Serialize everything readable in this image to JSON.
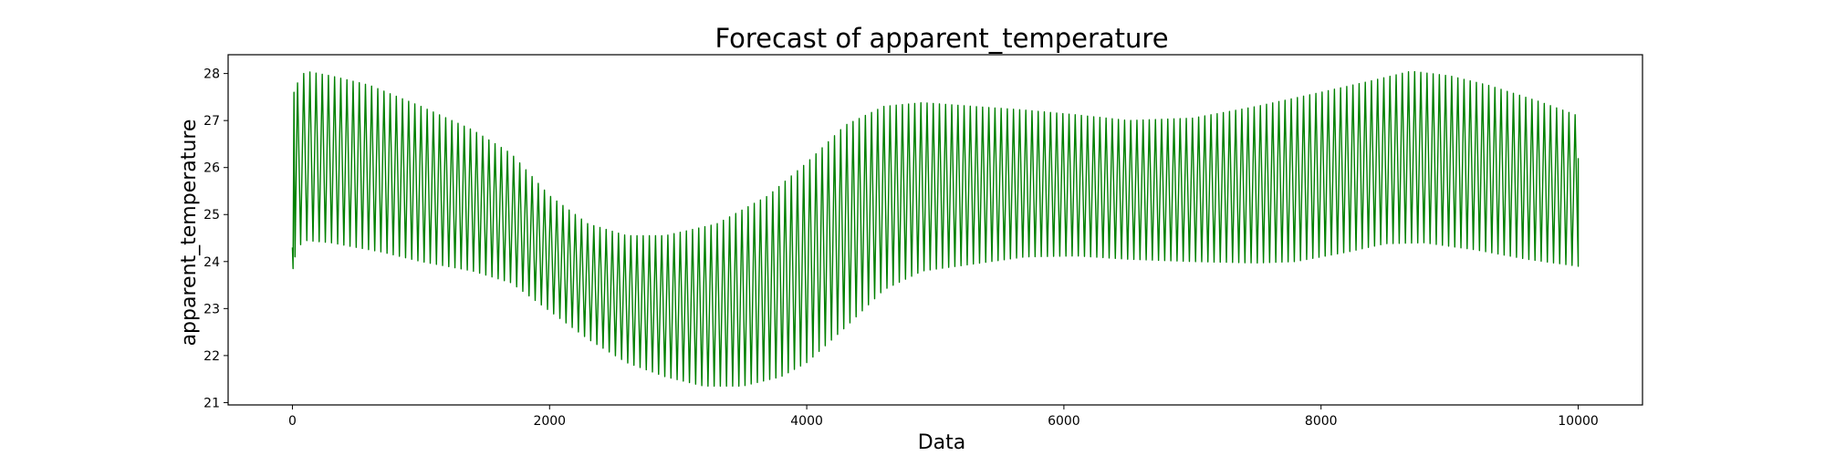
{
  "chart_data": {
    "type": "line",
    "title": "Forecast of apparent_temperature",
    "xlabel": "Data",
    "ylabel": "apparent_temperature",
    "xlim": [
      -500,
      10500
    ],
    "ylim": [
      20.95,
      28.4
    ],
    "x_ticks": [
      0,
      2000,
      4000,
      6000,
      8000,
      10000
    ],
    "y_ticks": [
      21,
      22,
      23,
      24,
      25,
      26,
      27,
      28
    ],
    "grid": false,
    "legend": "none",
    "line_color": "#008000",
    "series": [
      {
        "oscillation_period": 48,
        "initial": [
          {
            "x": 0,
            "value": 24.3
          },
          {
            "x": 5,
            "value": 23.85
          },
          {
            "x": 12,
            "value": 27.6
          },
          {
            "x": 20,
            "value": 24.1
          }
        ],
        "upper_envelope": [
          [
            40,
            27.8
          ],
          [
            100,
            28.05
          ],
          [
            300,
            27.95
          ],
          [
            600,
            27.75
          ],
          [
            1000,
            27.3
          ],
          [
            1400,
            26.8
          ],
          [
            1700,
            26.3
          ],
          [
            2000,
            25.4
          ],
          [
            2300,
            24.8
          ],
          [
            2600,
            24.55
          ],
          [
            2900,
            24.55
          ],
          [
            3300,
            24.8
          ],
          [
            3700,
            25.4
          ],
          [
            4000,
            26.1
          ],
          [
            4300,
            26.9
          ],
          [
            4600,
            27.3
          ],
          [
            4900,
            27.38
          ],
          [
            5300,
            27.3
          ],
          [
            5700,
            27.22
          ],
          [
            6100,
            27.12
          ],
          [
            6500,
            27.0
          ],
          [
            7000,
            27.05
          ],
          [
            7500,
            27.3
          ],
          [
            8000,
            27.6
          ],
          [
            8400,
            27.85
          ],
          [
            8700,
            28.05
          ],
          [
            9000,
            27.95
          ],
          [
            9300,
            27.75
          ],
          [
            9700,
            27.4
          ],
          [
            10000,
            27.1
          ]
        ],
        "lower_envelope": [
          [
            40,
            24.3
          ],
          [
            100,
            24.45
          ],
          [
            300,
            24.4
          ],
          [
            700,
            24.2
          ],
          [
            1000,
            24.0
          ],
          [
            1400,
            23.8
          ],
          [
            1700,
            23.55
          ],
          [
            2000,
            22.95
          ],
          [
            2300,
            22.35
          ],
          [
            2600,
            21.85
          ],
          [
            2900,
            21.55
          ],
          [
            3200,
            21.35
          ],
          [
            3500,
            21.35
          ],
          [
            3800,
            21.55
          ],
          [
            4000,
            21.85
          ],
          [
            4300,
            22.6
          ],
          [
            4600,
            23.4
          ],
          [
            4900,
            23.8
          ],
          [
            5300,
            23.95
          ],
          [
            5700,
            24.1
          ],
          [
            6100,
            24.12
          ],
          [
            6500,
            24.05
          ],
          [
            7000,
            24.0
          ],
          [
            7500,
            23.97
          ],
          [
            7800,
            24.0
          ],
          [
            8200,
            24.2
          ],
          [
            8500,
            24.38
          ],
          [
            8800,
            24.4
          ],
          [
            9200,
            24.25
          ],
          [
            9600,
            24.05
          ],
          [
            10000,
            23.9
          ]
        ],
        "final_value": 26.2
      }
    ]
  }
}
